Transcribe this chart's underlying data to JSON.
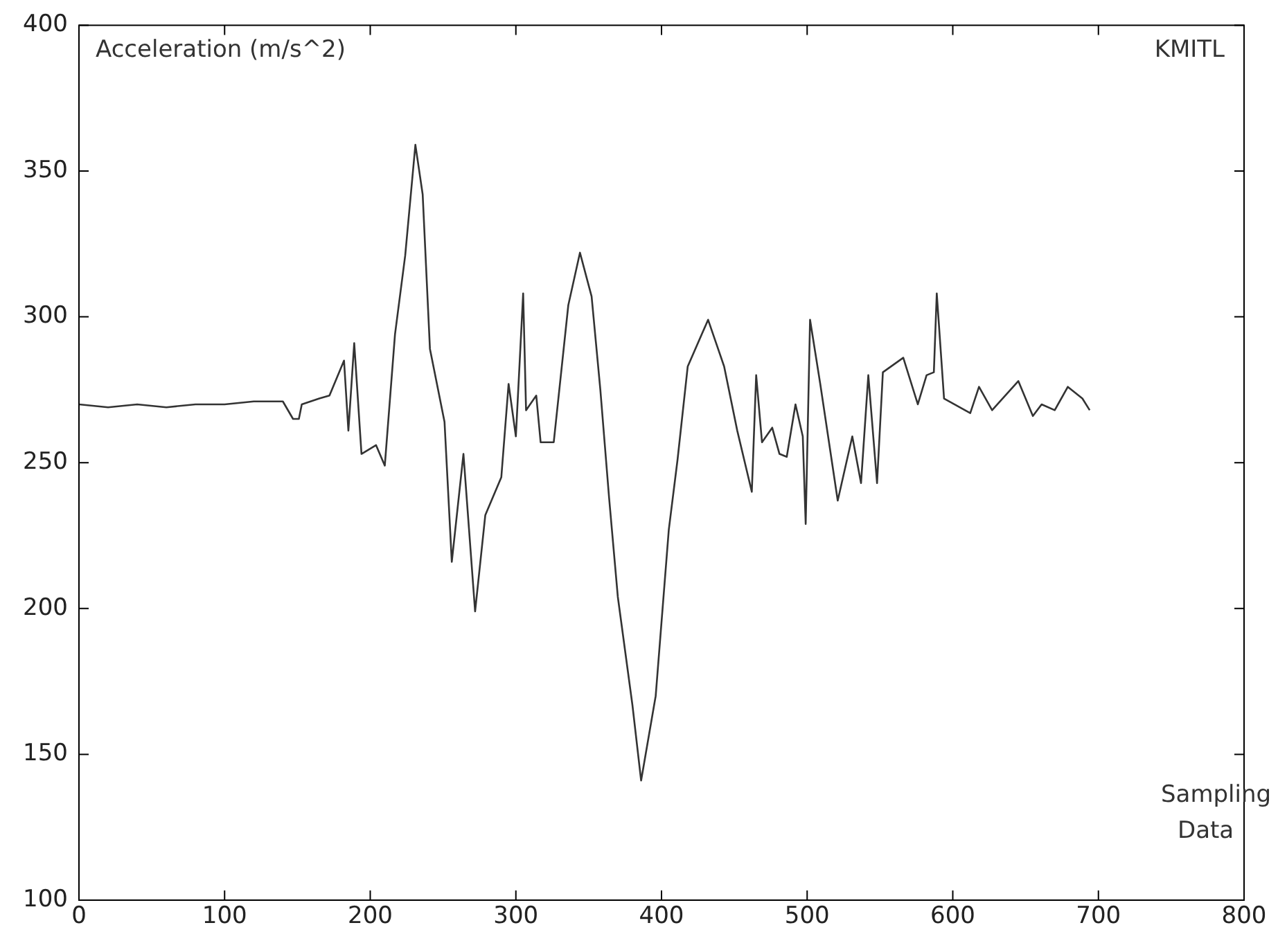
{
  "chart_data": {
    "type": "line",
    "ylabel": "Acceleration (m/s^2)",
    "xlabel": "Sampling Data",
    "annotations": [
      "KMITL"
    ],
    "xlim": [
      0,
      800
    ],
    "xticks": [
      0,
      100,
      200,
      300,
      400,
      500,
      600,
      700,
      800
    ],
    "ylim": [
      100,
      400
    ],
    "yticks": [
      100,
      150,
      200,
      250,
      300,
      350,
      400
    ],
    "grid": false,
    "legend": false,
    "marker": "none",
    "line_style": "solid",
    "series": [
      {
        "color": "#333333",
        "x": [
          0,
          20,
          40,
          60,
          80,
          100,
          120,
          140,
          147,
          151,
          153,
          165,
          172,
          182,
          185,
          189,
          194,
          204,
          210,
          217,
          224,
          231,
          236,
          241,
          251,
          256,
          264,
          272,
          279,
          290,
          295,
          300,
          305,
          307,
          314,
          317,
          326,
          336,
          344,
          352,
          358,
          364,
          370,
          380,
          386,
          396,
          405,
          411,
          418,
          432,
          443,
          452,
          462,
          465,
          469,
          476,
          481,
          486,
          492,
          497,
          499,
          502,
          509,
          521,
          531,
          537,
          542,
          548,
          552,
          566,
          576,
          582,
          587,
          589,
          594,
          612,
          618,
          627,
          645,
          655,
          661,
          670,
          679,
          689,
          694
        ],
        "values": [
          270,
          269,
          270,
          269,
          270,
          270,
          271,
          271,
          265,
          265,
          270,
          272,
          273,
          285,
          261,
          291,
          253,
          256,
          249,
          294,
          321,
          359,
          342,
          289,
          264,
          216,
          253,
          199,
          232,
          245,
          277,
          259,
          308,
          268,
          273,
          257,
          257,
          304,
          322,
          307,
          275,
          238,
          204,
          167,
          141,
          170,
          227,
          251,
          283,
          299,
          283,
          261,
          240,
          280,
          257,
          262,
          253,
          252,
          270,
          259,
          229,
          299,
          277,
          237,
          259,
          243,
          280,
          243,
          281,
          286,
          270,
          280,
          281,
          308,
          272,
          267,
          276,
          268,
          278,
          266,
          270,
          268,
          276,
          272,
          268
        ]
      }
    ]
  }
}
